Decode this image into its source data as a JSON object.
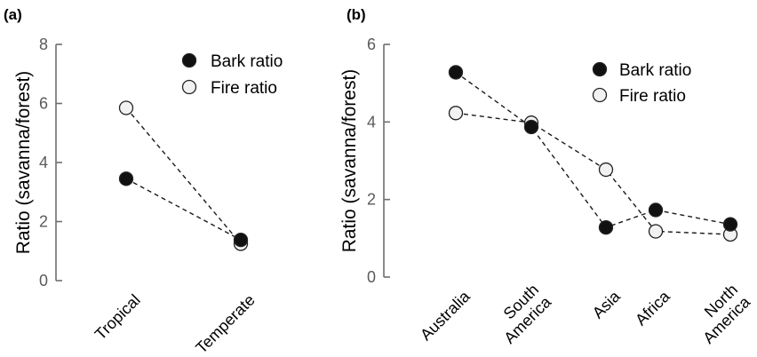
{
  "chart_data": [
    {
      "type": "line",
      "panel_label": "(a)",
      "ylabel": "Ratio (savanna/forest)",
      "ylim": [
        0,
        8
      ],
      "yticks": [
        0,
        2,
        4,
        6,
        8
      ],
      "categories": [
        "Tropical",
        "Temperate"
      ],
      "legend_position": "top-right",
      "series": [
        {
          "name": "Bark ratio",
          "marker": "filled-circle",
          "line": "dashed",
          "values": [
            3.45,
            1.38
          ]
        },
        {
          "name": "Fire ratio",
          "marker": "open-circle",
          "line": "dashed",
          "values": [
            5.85,
            1.25
          ]
        }
      ]
    },
    {
      "type": "line",
      "panel_label": "(b)",
      "ylabel": "Ratio (savanna/forest)",
      "ylim": [
        0,
        6
      ],
      "yticks": [
        0,
        2,
        4,
        6
      ],
      "categories": [
        "Australia",
        "South America",
        "Asia",
        "Africa",
        "North America"
      ],
      "category_lines": [
        [
          "Australia"
        ],
        [
          "South",
          "America"
        ],
        [
          "Asia"
        ],
        [
          "Africa"
        ],
        [
          "North",
          "America"
        ]
      ],
      "legend_position": "top-right",
      "series": [
        {
          "name": "Bark ratio",
          "marker": "filled-circle",
          "line": "dashed",
          "values": [
            5.28,
            3.87,
            1.28,
            1.73,
            1.36
          ]
        },
        {
          "name": "Fire ratio",
          "marker": "open-circle",
          "line": "dashed",
          "values": [
            4.23,
            3.98,
            2.77,
            1.18,
            1.1
          ]
        }
      ]
    }
  ],
  "colors": {
    "bark_fill": "#111111",
    "fire_fill": "#f2f2f2",
    "marker_stroke": "#222222",
    "axis": "#6e6e6e",
    "tick_label": "#5a5a5a"
  }
}
